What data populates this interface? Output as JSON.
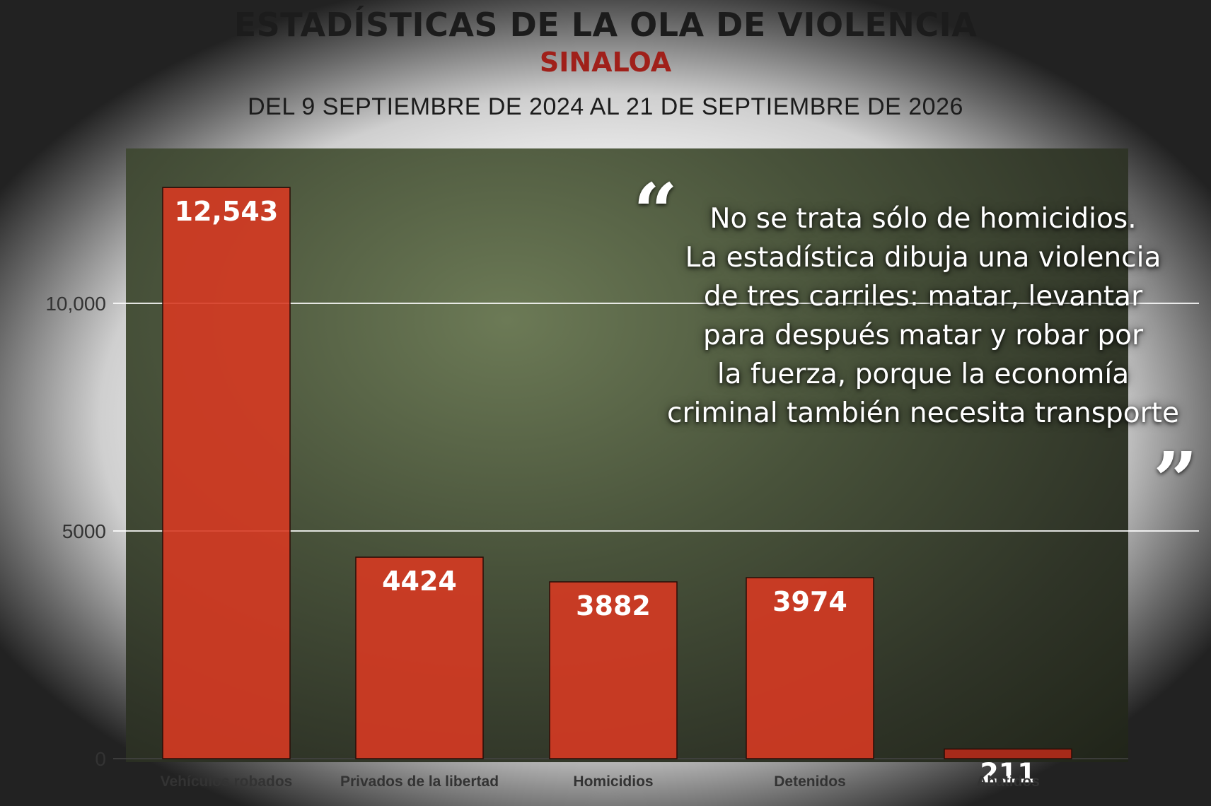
{
  "header": {
    "title": "ESTADÍSTICAS DE LA OLA DE VIOLENCIA",
    "subtitle": "SINALOA",
    "period": "DEL 9 SEPTIEMBRE DE 2024 AL 21 DE SEPTIEMBRE DE 2026"
  },
  "quote": {
    "open_mark": "“",
    "close_mark": "”",
    "lines": [
      "No se trata sólo de homicidios.",
      "La estadística dibuja una violencia",
      "de tres carriles: matar, levantar",
      "para después matar y robar por",
      "la fuerza, porque la economía",
      "criminal también necesita transporte"
    ]
  },
  "colors": {
    "bar": "#d63a22",
    "bar_last": "#b52a1a",
    "title": "#1c1c1c",
    "subtitle": "#a0201a"
  },
  "chart_data": {
    "type": "bar",
    "categories": [
      "Vehículos robados",
      "Privados de la libertad",
      "Homicidios",
      "Detenidos",
      "Abatidos"
    ],
    "values": [
      12543,
      4424,
      3882,
      3974,
      211
    ],
    "value_labels": [
      "12,543",
      "4424",
      "3882",
      "3974",
      "211"
    ],
    "yticks": [
      0,
      5000,
      10000
    ],
    "ytick_labels": [
      "0",
      "5000",
      "10,000"
    ],
    "ylim": [
      0,
      13400
    ],
    "grid": true
  }
}
